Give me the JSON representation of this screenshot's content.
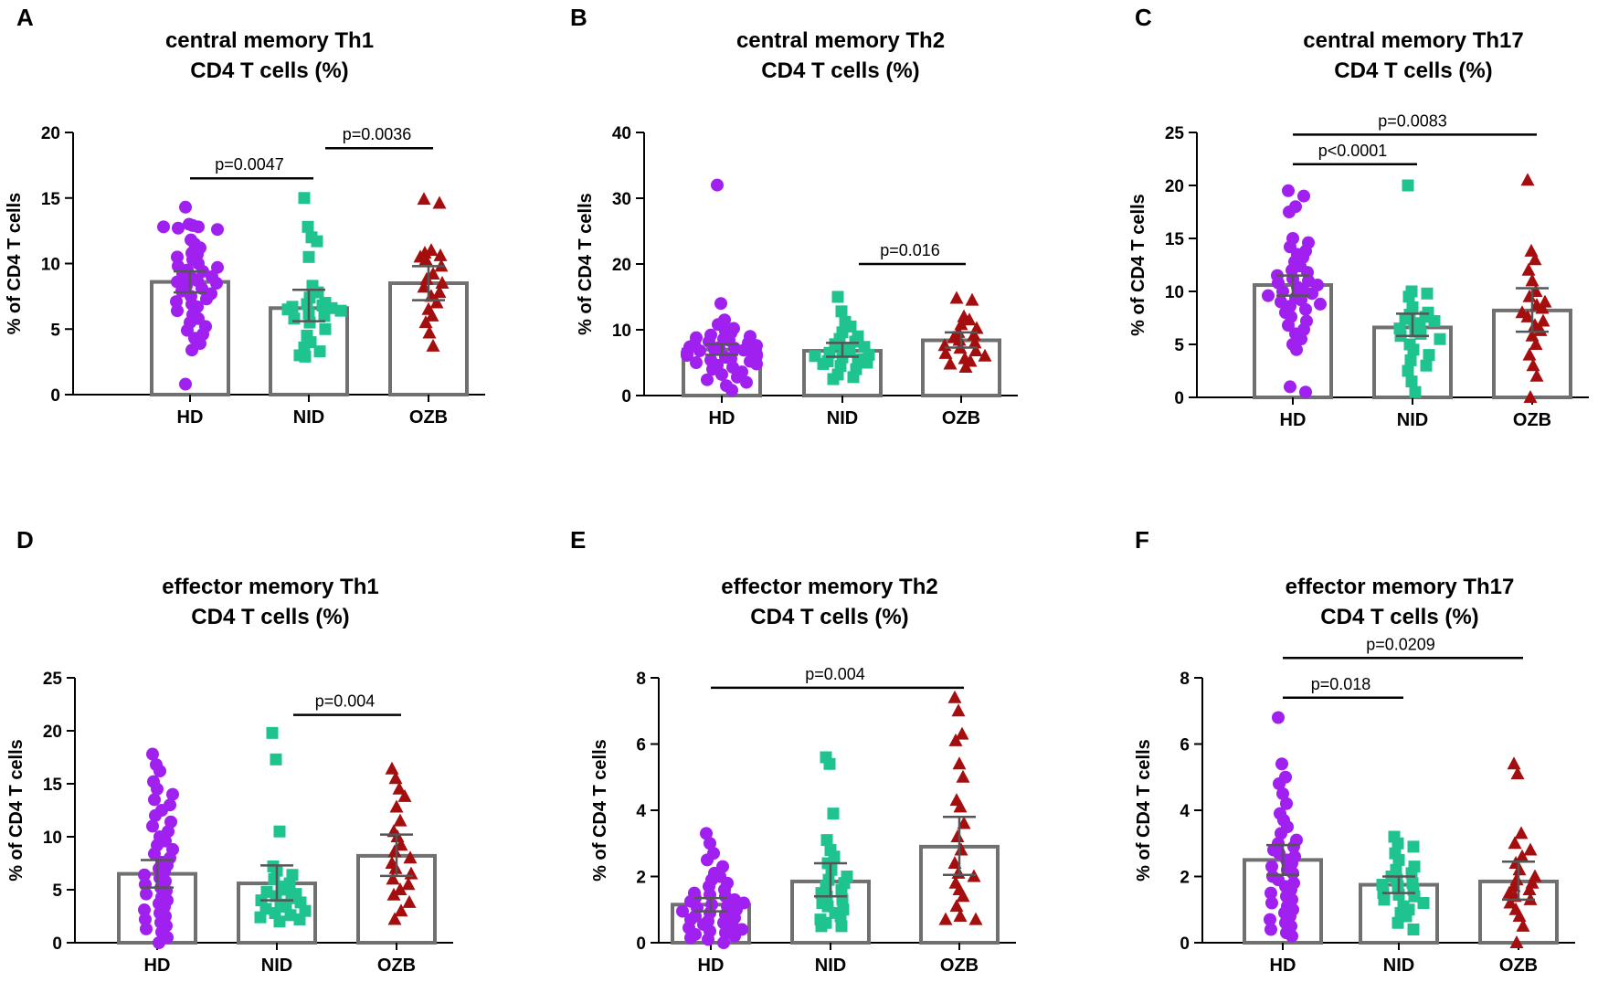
{
  "group_colors": {
    "HD": "#a020f0",
    "NID": "#1ec38f",
    "OZB": "#a50e0e"
  },
  "group_markers": {
    "HD": "circle",
    "NID": "square",
    "OZB": "triangle"
  },
  "chart_data": [
    {
      "panel": "A",
      "type": "bar",
      "title": [
        "central memory Th1",
        "CD4 T cells (%)"
      ],
      "ylabel": "% of CD4 T cells",
      "xlabel": "",
      "ylim": [
        0,
        20
      ],
      "yticks": [
        0,
        5,
        10,
        15,
        20
      ],
      "categories": [
        "HD",
        "NID",
        "OZB"
      ],
      "values": [
        8.6,
        6.6,
        8.5
      ],
      "errors": [
        [
          7.8,
          9.4
        ],
        [
          5.6,
          8.0
        ],
        [
          7.2,
          9.8
        ]
      ],
      "points": [
        [
          14.3,
          13.0,
          12.9,
          12.8,
          12.7,
          12.6,
          12.8,
          11.8,
          11.5,
          11.2,
          10.8,
          10.7,
          10.5,
          10.3,
          10.0,
          9.8,
          9.7,
          9.5,
          9.4,
          9.2,
          9.0,
          8.9,
          8.7,
          8.6,
          8.5,
          8.3,
          8.1,
          7.9,
          7.7,
          7.5,
          7.3,
          7.1,
          6.9,
          6.7,
          6.4,
          6.1,
          5.8,
          5.5,
          5.2,
          4.9,
          4.6,
          4.3,
          3.9,
          3.4,
          0.8
        ],
        [
          15.0,
          12.8,
          12.0,
          11.7,
          10.5,
          8.3,
          7.8,
          7.4,
          7.0,
          6.9,
          6.8,
          6.7,
          6.6,
          6.5,
          6.4,
          6.2,
          6.0,
          5.8,
          5.5,
          5.0,
          4.5,
          4.0,
          3.6,
          3.3,
          3.0,
          2.9
        ],
        [
          14.9,
          14.6,
          11.0,
          10.8,
          10.6,
          10.5,
          10.3,
          9.8,
          9.2,
          8.8,
          8.5,
          8.2,
          7.8,
          7.5,
          7.0,
          6.5,
          6.0,
          5.5,
          4.7,
          3.7
        ]
      ],
      "significance": [
        {
          "from": "HD",
          "to": "NID",
          "label": "p=0.0047",
          "y": 16.5
        },
        {
          "from": "NID",
          "to": "OZB",
          "label": "p=0.0036",
          "y": 18.8
        }
      ]
    },
    {
      "panel": "B",
      "type": "bar",
      "title": [
        "central memory Th2",
        "CD4 T cells (%)"
      ],
      "ylabel": "% of CD4 T cells",
      "xlabel": "",
      "ylim": [
        0,
        40
      ],
      "yticks": [
        0,
        10,
        20,
        30,
        40
      ],
      "categories": [
        "HD",
        "NID",
        "OZB"
      ],
      "values": [
        7.0,
        6.8,
        8.4
      ],
      "errors": [
        [
          6.2,
          7.8
        ],
        [
          5.9,
          8.0
        ],
        [
          7.3,
          9.6
        ]
      ],
      "points": [
        [
          32.0,
          14.0,
          11.5,
          10.8,
          10.2,
          9.8,
          9.5,
          9.2,
          9.0,
          8.8,
          8.6,
          8.4,
          8.2,
          8.0,
          7.8,
          7.6,
          7.4,
          7.3,
          7.2,
          7.0,
          6.9,
          6.8,
          6.6,
          6.5,
          6.3,
          6.1,
          6.0,
          5.8,
          5.6,
          5.4,
          5.2,
          5.0,
          4.8,
          4.6,
          4.3,
          4.0,
          3.6,
          3.2,
          2.8,
          2.4,
          2.0,
          1.5,
          0.8
        ],
        [
          15.0,
          12.8,
          11.2,
          10.5,
          9.6,
          9.0,
          8.6,
          8.2,
          7.8,
          7.4,
          7.0,
          6.8,
          6.5,
          6.2,
          6.0,
          5.8,
          5.5,
          5.2,
          5.0,
          4.8,
          4.5,
          4.0,
          3.2,
          2.8,
          2.5
        ],
        [
          14.8,
          14.5,
          12.0,
          11.5,
          10.8,
          10.2,
          9.6,
          9.2,
          8.8,
          8.4,
          8.0,
          7.6,
          7.2,
          6.8,
          6.4,
          6.0,
          5.6,
          5.2,
          4.8,
          4.3
        ]
      ],
      "significance": [
        {
          "from": "NID",
          "to": "OZB",
          "label": "p=0.016",
          "y": 20
        }
      ]
    },
    {
      "panel": "C",
      "type": "bar",
      "title": [
        "central memory Th17",
        "CD4 T cells (%)"
      ],
      "ylabel": "% of CD4 T cells",
      "xlabel": "",
      "ylim": [
        0,
        25
      ],
      "yticks": [
        0,
        5,
        10,
        15,
        20,
        25
      ],
      "categories": [
        "HD",
        "NID",
        "OZB"
      ],
      "values": [
        10.6,
        6.6,
        8.2
      ],
      "errors": [
        [
          9.6,
          11.5
        ],
        [
          5.8,
          7.9
        ],
        [
          6.2,
          10.3
        ]
      ],
      "points": [
        [
          19.5,
          19.0,
          18.0,
          17.5,
          15.0,
          14.6,
          14.2,
          13.8,
          13.5,
          13.2,
          12.8,
          12.4,
          12.0,
          11.8,
          11.5,
          11.2,
          11.0,
          10.8,
          10.6,
          10.4,
          10.2,
          10.0,
          9.8,
          9.6,
          9.4,
          9.2,
          9.0,
          8.8,
          8.6,
          8.3,
          8.0,
          7.6,
          7.2,
          6.8,
          6.4,
          6.0,
          5.5,
          5.0,
          4.5,
          1.0,
          0.5
        ],
        [
          20.0,
          10.0,
          9.8,
          9.5,
          8.5,
          8.0,
          7.8,
          7.6,
          7.4,
          7.2,
          7.0,
          6.8,
          6.5,
          6.2,
          6.0,
          5.8,
          5.5,
          5.0,
          4.5,
          4.0,
          3.5,
          3.0,
          2.5,
          1.5,
          0.5
        ],
        [
          20.5,
          13.8,
          13.0,
          12.0,
          11.0,
          10.0,
          9.5,
          9.0,
          8.7,
          8.4,
          8.0,
          7.6,
          7.2,
          6.8,
          6.3,
          5.8,
          5.0,
          4.0,
          3.0,
          2.0,
          0.0
        ]
      ],
      "significance": [
        {
          "from": "HD",
          "to": "NID",
          "label": "p<0.0001",
          "y": 22
        },
        {
          "from": "HD",
          "to": "OZB",
          "label": "p=0.0083",
          "y": 24.8
        }
      ]
    },
    {
      "panel": "D",
      "type": "bar",
      "title": [
        "effector memory Th1",
        "CD4 T cells (%)"
      ],
      "ylabel": "% of CD4 T cells",
      "xlabel": "",
      "ylim": [
        0,
        25
      ],
      "yticks": [
        0,
        5,
        10,
        15,
        20,
        25
      ],
      "categories": [
        "HD",
        "NID",
        "OZB"
      ],
      "values": [
        6.5,
        5.6,
        8.2
      ],
      "errors": [
        [
          5.2,
          7.8
        ],
        [
          4.0,
          7.3
        ],
        [
          6.3,
          10.2
        ]
      ],
      "points": [
        [
          17.8,
          16.8,
          16.2,
          15.2,
          14.5,
          14.0,
          13.5,
          13.0,
          12.5,
          12.0,
          11.4,
          11.0,
          10.5,
          10.0,
          9.6,
          9.2,
          8.8,
          8.4,
          8.0,
          7.6,
          7.3,
          7.0,
          6.7,
          6.4,
          6.1,
          5.8,
          5.5,
          5.2,
          4.9,
          4.6,
          4.3,
          4.0,
          3.7,
          3.4,
          3.1,
          2.8,
          2.5,
          2.2,
          1.9,
          1.6,
          1.3,
          1.0,
          0.5,
          0.0
        ],
        [
          19.8,
          17.3,
          10.5,
          7.2,
          6.8,
          6.4,
          6.0,
          5.6,
          5.3,
          5.0,
          4.8,
          4.6,
          4.4,
          4.2,
          4.0,
          3.8,
          3.6,
          3.4,
          3.2,
          3.0,
          2.8,
          2.6,
          2.4,
          2.2,
          2.0
        ],
        [
          16.4,
          15.5,
          14.5,
          13.8,
          12.8,
          11.5,
          10.5,
          10.0,
          9.2,
          8.6,
          8.0,
          7.5,
          7.0,
          6.5,
          6.0,
          5.5,
          5.0,
          4.5,
          3.8,
          3.0,
          2.2
        ]
      ],
      "significance": [
        {
          "from": "NID",
          "to": "OZB",
          "label": "p=0.004",
          "y": 21.5
        }
      ]
    },
    {
      "panel": "E",
      "type": "bar",
      "title": [
        "effector memory Th2",
        "CD4 T cells (%)"
      ],
      "ylabel": "% of CD4 T cells",
      "xlabel": "",
      "ylim": [
        0,
        8
      ],
      "yticks": [
        0,
        2,
        4,
        6,
        8
      ],
      "categories": [
        "HD",
        "NID",
        "OZB"
      ],
      "values": [
        1.15,
        1.85,
        2.9
      ],
      "errors": [
        [
          0.95,
          1.35
        ],
        [
          1.4,
          2.4
        ],
        [
          2.05,
          3.8
        ]
      ],
      "points": [
        [
          3.3,
          3.0,
          2.7,
          2.5,
          2.3,
          2.1,
          2.0,
          1.9,
          1.8,
          1.7,
          1.6,
          1.5,
          1.45,
          1.4,
          1.35,
          1.3,
          1.25,
          1.2,
          1.15,
          1.1,
          1.05,
          1.0,
          0.95,
          0.9,
          0.85,
          0.8,
          0.75,
          0.7,
          0.65,
          0.6,
          0.55,
          0.5,
          0.45,
          0.4,
          0.35,
          0.3,
          0.25,
          0.2,
          0.15,
          0.1,
          0.0
        ],
        [
          5.6,
          5.4,
          3.9,
          3.1,
          2.8,
          2.6,
          2.4,
          2.2,
          2.0,
          1.9,
          1.8,
          1.7,
          1.6,
          1.5,
          1.4,
          1.3,
          1.2,
          1.1,
          1.0,
          0.9,
          0.8,
          0.7,
          0.6,
          0.5,
          0.5
        ],
        [
          7.4,
          7.0,
          6.3,
          6.1,
          5.4,
          5.0,
          4.3,
          4.1,
          3.6,
          3.2,
          2.8,
          2.4,
          2.1,
          2.0,
          1.8,
          1.6,
          1.4,
          1.1,
          0.8,
          0.7,
          0.7
        ]
      ],
      "significance": [
        {
          "from": "HD",
          "to": "OZB",
          "label": "p=0.004",
          "y": 7.7
        }
      ]
    },
    {
      "panel": "F",
      "type": "bar",
      "title": [
        "effector memory Th17",
        "CD4 T cells (%)"
      ],
      "ylabel": "% of CD4 T cells",
      "xlabel": "",
      "ylim": [
        0,
        8
      ],
      "yticks": [
        0,
        2,
        4,
        6,
        8
      ],
      "categories": [
        "HD",
        "NID",
        "OZB"
      ],
      "values": [
        2.5,
        1.75,
        1.85
      ],
      "errors": [
        [
          2.05,
          2.95
        ],
        [
          1.5,
          2.0
        ],
        [
          1.3,
          2.45
        ]
      ],
      "points": [
        [
          6.8,
          5.4,
          5.0,
          4.8,
          4.5,
          4.2,
          3.9,
          3.7,
          3.5,
          3.3,
          3.1,
          3.0,
          2.9,
          2.8,
          2.7,
          2.6,
          2.5,
          2.4,
          2.3,
          2.2,
          2.1,
          2.0,
          1.9,
          1.8,
          1.7,
          1.6,
          1.5,
          1.4,
          1.3,
          1.2,
          1.1,
          1.0,
          0.9,
          0.8,
          0.7,
          0.6,
          0.5,
          0.4,
          0.3,
          0.2
        ],
        [
          3.2,
          3.0,
          2.9,
          2.7,
          2.5,
          2.3,
          2.2,
          2.1,
          2.0,
          1.9,
          1.8,
          1.75,
          1.7,
          1.6,
          1.5,
          1.45,
          1.4,
          1.3,
          1.2,
          1.1,
          1.0,
          0.9,
          0.8,
          0.6,
          0.4
        ],
        [
          5.4,
          5.1,
          3.3,
          3.0,
          2.8,
          2.6,
          2.4,
          2.2,
          2.0,
          1.9,
          1.8,
          1.7,
          1.6,
          1.5,
          1.4,
          1.3,
          1.2,
          1.0,
          0.8,
          0.5,
          0.0
        ]
      ],
      "significance": [
        {
          "from": "HD",
          "to": "NID",
          "label": "p=0.018",
          "y": 7.4
        },
        {
          "from": "HD",
          "to": "OZB",
          "label": "p=0.0209",
          "y": 8.6
        }
      ]
    }
  ]
}
